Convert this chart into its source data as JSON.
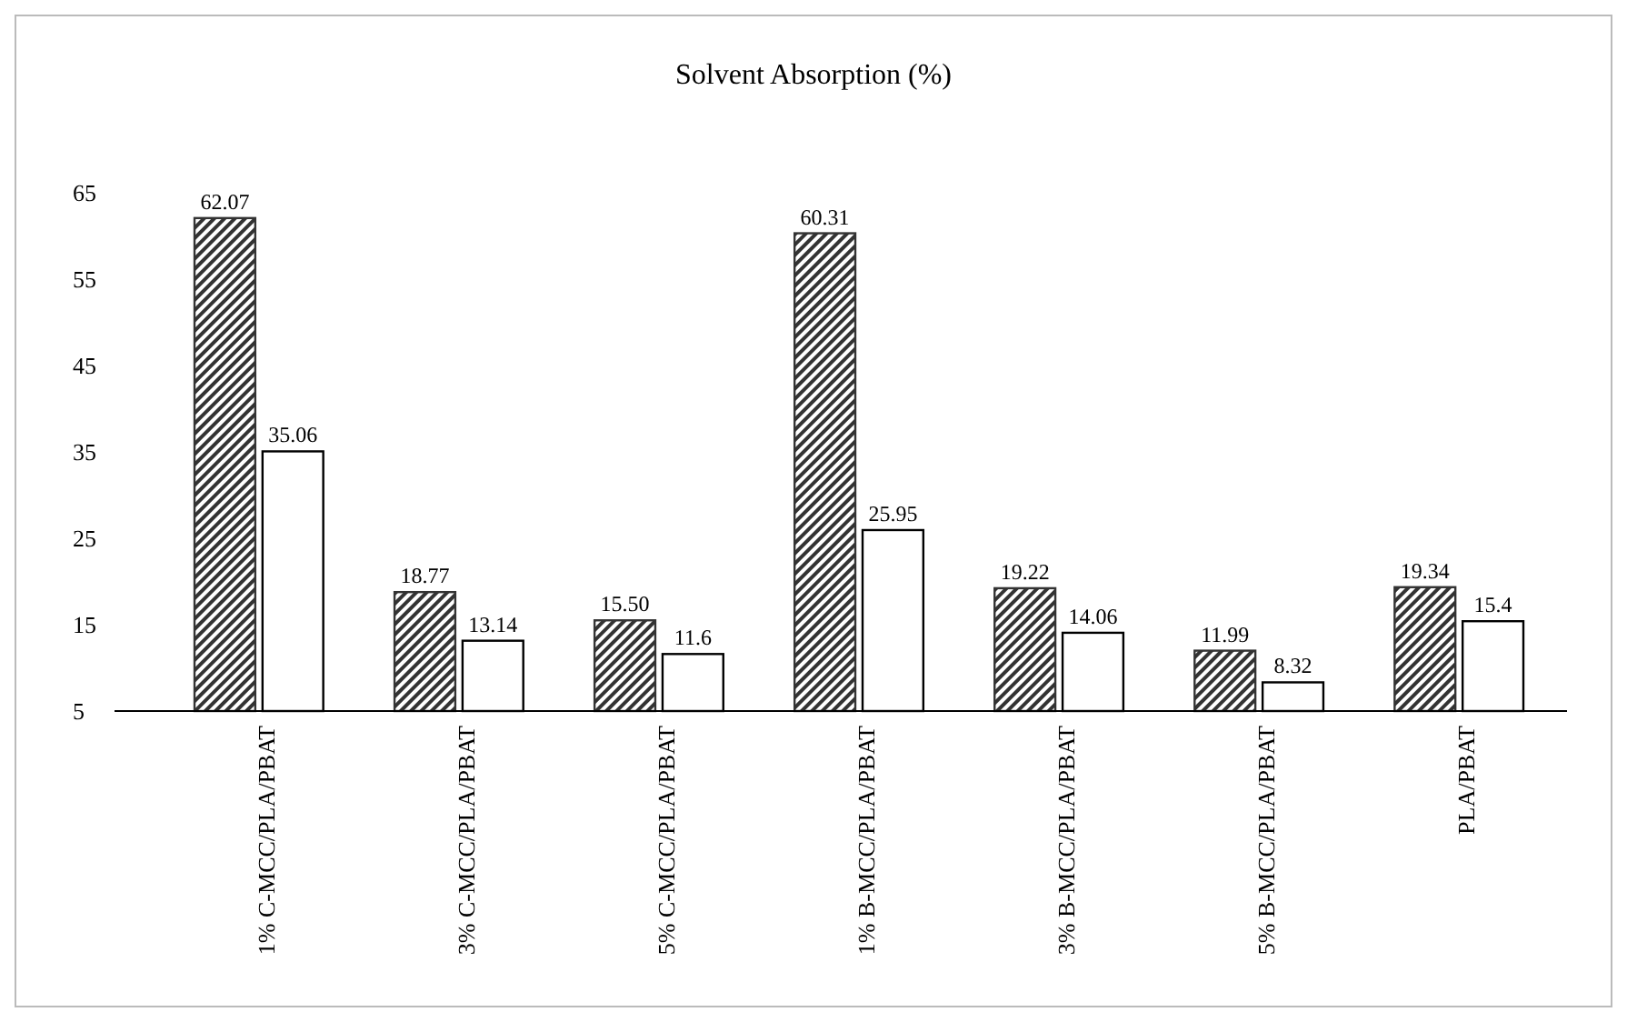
{
  "chart_data": {
    "type": "bar",
    "title": "Solvent Absorption (%)",
    "categories": [
      "1% C-MCC/PLA/PBAT",
      "3% C-MCC/PLA/PBAT",
      "5% C-MCC/PLA/PBAT",
      "1% B-MCC/PLA/PBAT",
      "3% B-MCC/PLA/PBAT",
      "5% B-MCC/PLA/PBAT",
      "PLA/PBAT"
    ],
    "series": [
      {
        "color": "#333333",
        "values": [
          62.07,
          18.77,
          15.5,
          60.31,
          19.22,
          11.99,
          19.34
        ],
        "value_labels": [
          "62.07",
          "18.77",
          "15.50",
          "60.31",
          "19.22",
          "11.99",
          "19.34"
        ]
      },
      {
        "color": "#ffffff",
        "values": [
          35.06,
          13.14,
          11.6,
          25.95,
          14.06,
          8.32,
          15.4
        ],
        "value_labels": [
          "35.06",
          "13.14",
          "11.6",
          "25.95",
          "14.06",
          "8.32",
          "15.4"
        ]
      }
    ],
    "ylim": [
      5,
      65
    ],
    "yticks": [
      5,
      15,
      25,
      35,
      45,
      55,
      65
    ],
    "grid": false
  }
}
